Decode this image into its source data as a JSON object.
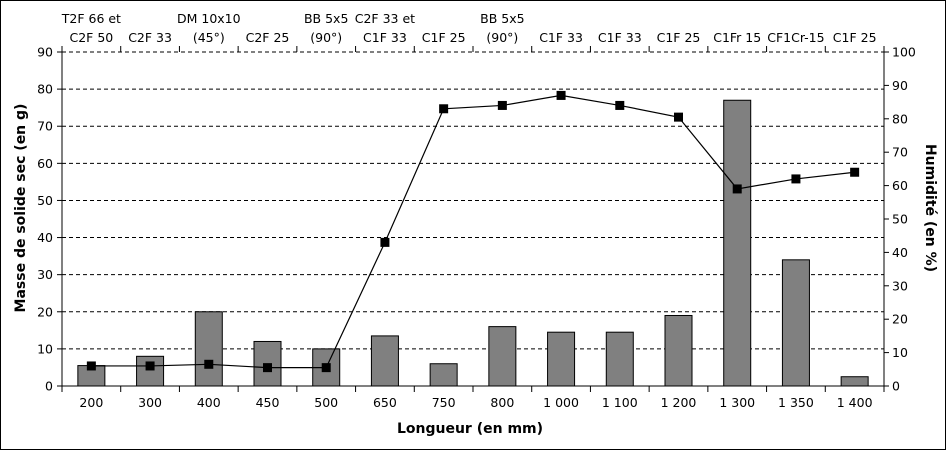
{
  "chart_data": {
    "type": "bar",
    "categories": [
      "200",
      "300",
      "400",
      "450",
      "500",
      "650",
      "750",
      "800",
      "1 000",
      "1 100",
      "1 200",
      "1 300",
      "1 350",
      "1 400"
    ],
    "top_labels": [
      [
        "T2F 66 et",
        "C2F 50"
      ],
      [
        "",
        "C2F 33"
      ],
      [
        "DM 10x10",
        "(45°)"
      ],
      [
        "",
        "C2F 25"
      ],
      [
        "BB 5x5",
        "(90°)"
      ],
      [
        "C2F 33 et",
        "C1F 33"
      ],
      [
        "",
        "C1F 25"
      ],
      [
        "BB 5x5",
        "(90°)"
      ],
      [
        "",
        "C1F 33"
      ],
      [
        "",
        "C1F 33"
      ],
      [
        "",
        "C1F 25"
      ],
      [
        "",
        "C1Fr 15"
      ],
      [
        "",
        "CF1Cr-15"
      ],
      [
        "",
        "C1F 25"
      ]
    ],
    "series": [
      {
        "type": "bar",
        "axis": "left",
        "color": "#808080",
        "values": [
          5.5,
          8,
          20,
          12,
          10,
          13.5,
          6,
          16,
          14.5,
          14.5,
          19,
          77,
          34,
          2.5
        ]
      },
      {
        "type": "line",
        "axis": "right",
        "color": "#000000",
        "marker": "square",
        "values": [
          6,
          6,
          6.5,
          5.5,
          5.5,
          43,
          83,
          84,
          87,
          84,
          80.5,
          59,
          62,
          64
        ]
      }
    ],
    "xlabel": "Longueur (en mm)",
    "ylabel": "Masse de solide sec (en g)",
    "y2label": "Humidité (en %)",
    "ylim": [
      0,
      90
    ],
    "y2lim": [
      0,
      100
    ],
    "yticks": [
      0,
      10,
      20,
      30,
      40,
      50,
      60,
      70,
      80,
      90
    ],
    "y2ticks": [
      0,
      10,
      20,
      30,
      40,
      50,
      60,
      70,
      80,
      90,
      100
    ],
    "grid": true,
    "legend": "none"
  }
}
